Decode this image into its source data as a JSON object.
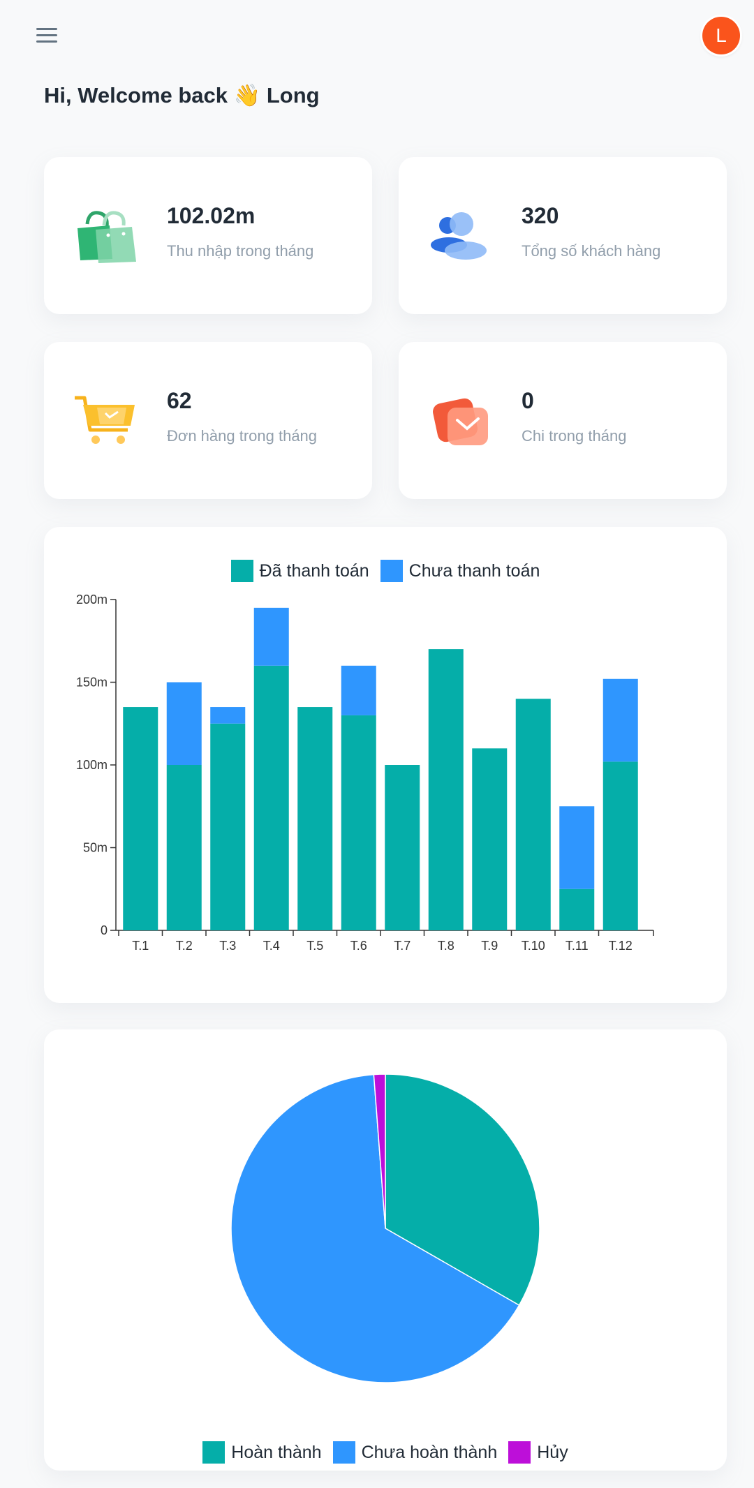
{
  "header": {
    "menu_icon": "hamburger-menu-icon",
    "avatar_letter": "L",
    "avatar_color": "#fa541c"
  },
  "greeting": "Hi, Welcome back 👋 Long",
  "stats": [
    {
      "value": "102.02m",
      "label": "Thu nhập trong tháng",
      "icon": "shopping-bag-icon"
    },
    {
      "value": "320",
      "label": "Tổng số khách hàng",
      "icon": "users-icon"
    },
    {
      "value": "62",
      "label": "Đơn hàng trong tháng",
      "icon": "shopping-cart-icon"
    },
    {
      "value": "0",
      "label": "Chi trong tháng",
      "icon": "envelope-icon"
    }
  ],
  "colors": {
    "paid": "#05aea9",
    "unpaid": "#2f96fe",
    "cancelled": "#bd0fd9"
  },
  "chart_data": [
    {
      "type": "bar",
      "stacked": true,
      "categories": [
        "T.1",
        "T.2",
        "T.3",
        "T.4",
        "T.5",
        "T.6",
        "T.7",
        "T.8",
        "T.9",
        "T.10",
        "T.11",
        "T.12"
      ],
      "series": [
        {
          "name": "Đã thanh toán",
          "values": [
            135,
            100,
            125,
            160,
            135,
            130,
            100,
            170,
            110,
            140,
            25,
            102
          ]
        },
        {
          "name": "Chưa thanh toán",
          "values": [
            0,
            50,
            10,
            35,
            0,
            30,
            0,
            0,
            0,
            0,
            50,
            50
          ]
        }
      ],
      "y_ticks": [
        "0",
        "50m",
        "100m",
        "150m",
        "200m"
      ],
      "ylim": [
        0,
        200
      ],
      "legend_position": "top-center"
    },
    {
      "type": "pie",
      "labels": [
        "Hoàn thành",
        "Chưa hoàn thành",
        "Hủy"
      ],
      "values": [
        33.3,
        65.5,
        1.2
      ],
      "legend_position": "bottom-center"
    }
  ]
}
